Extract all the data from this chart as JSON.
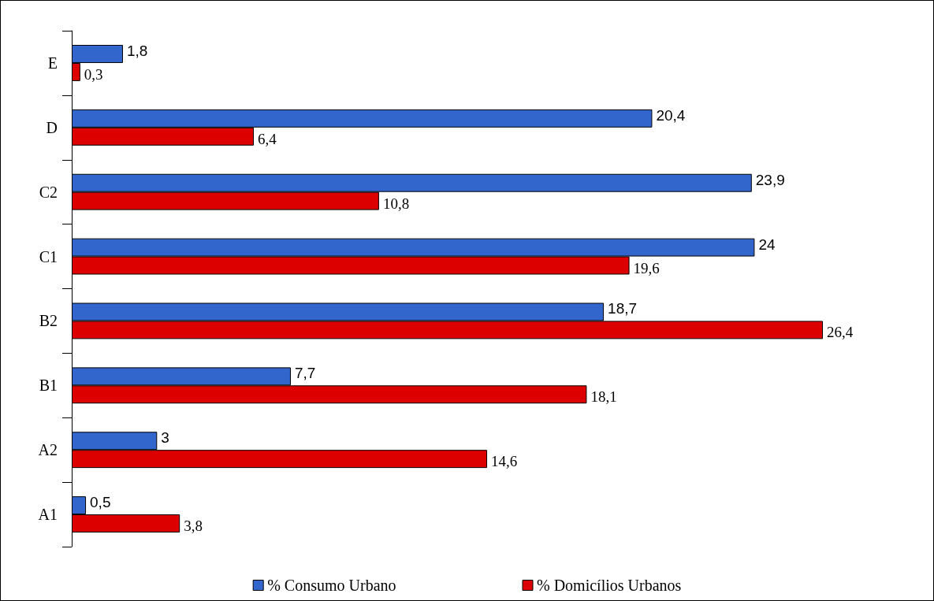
{
  "chart_data": {
    "type": "bar",
    "orientation": "horizontal",
    "categories": [
      "E",
      "D",
      "C2",
      "C1",
      "B2",
      "B1",
      "A2",
      "A1"
    ],
    "series": [
      {
        "name": "% Consumo Urbano",
        "color": "#3366cc",
        "values": [
          1.8,
          20.4,
          23.9,
          24,
          18.7,
          7.7,
          3,
          0.5
        ],
        "value_labels": [
          "1,8",
          "20,4",
          "23,9",
          "24",
          "18,7",
          "7,7",
          "3",
          "0,5"
        ]
      },
      {
        "name": "% Domicílios Urbanos",
        "color": "#dd0000",
        "values": [
          0.3,
          6.4,
          10.8,
          19.6,
          26.4,
          18.1,
          14.6,
          3.8
        ],
        "value_labels": [
          "0,3",
          "6,4",
          "10,8",
          "19,6",
          "26,4",
          "18,1",
          "14,6",
          "3,8"
        ]
      }
    ],
    "legend": "bottom",
    "grid": false
  }
}
